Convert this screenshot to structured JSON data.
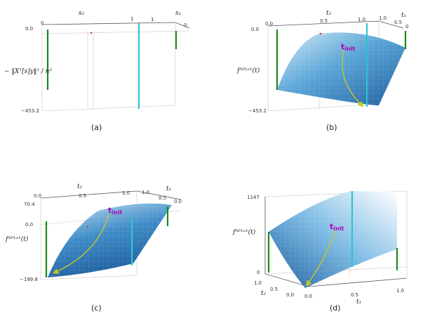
{
  "colors": {
    "surface_light": "#d6ecf7",
    "surface_dark": "#1f5f9e",
    "green_bar": "#1a8a1a",
    "cyan_bar": "#2ec4d0",
    "path": "#c8c820",
    "tinit": "#b000b0"
  },
  "panels": [
    {
      "id": "a",
      "caption": "(a)",
      "x_label": "s₂",
      "y_label": "s₁",
      "z_label": "− ‖Xᵀ[s]y‖² / n²",
      "x_ticks": [
        "0",
        "1"
      ],
      "y_ticks": [
        "1",
        "0"
      ],
      "z_ticks": [
        "0.0",
        "−453.2"
      ]
    },
    {
      "id": "b",
      "caption": "(b)",
      "x_label": "t₂",
      "y_label": "t₁",
      "z_label": "fᴬᴾᴸˢ¹(t)",
      "x_ticks": [
        "0.0",
        "0.5",
        "1.0"
      ],
      "y_ticks": [
        "1.0",
        "0.5",
        "0"
      ],
      "z_ticks": [
        "0.0",
        "−453.2"
      ],
      "tinit": "t",
      "tinit_sub": "init"
    },
    {
      "id": "c",
      "caption": "(c)",
      "x_label": "t₂",
      "y_label": "t₁",
      "z_label": "fᴬᴾᴸˢ¹(t)",
      "x_ticks": [
        "0.0",
        "0.5",
        "1.0"
      ],
      "y_ticks": [
        "1.0",
        "0.5",
        "0.0"
      ],
      "z_ticks": [
        "70.4",
        "0.0",
        "−199.8"
      ],
      "tinit": "t",
      "tinit_sub": "init"
    },
    {
      "id": "d",
      "caption": "(d)",
      "x_label": "t₁",
      "y_label": "t₂",
      "z_label": "fᴬᴾᴸˢ¹(t)",
      "x_ticks": [
        "0.0",
        "0.5",
        "1.0"
      ],
      "y_ticks": [
        "1.0",
        "0.5",
        "0.0"
      ],
      "z_ticks": [
        "1147",
        "0"
      ],
      "tinit": "t",
      "tinit_sub": "init"
    }
  ]
}
